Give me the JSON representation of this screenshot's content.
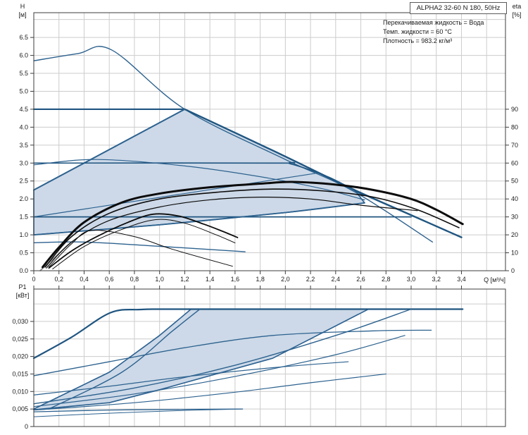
{
  "header": {
    "title_box": "ALPHA2 32-60 N 180, 50Hz",
    "conditions": [
      "Перекачиваемая жидкость = Вода",
      "Темп. жидкости = 60 °C",
      "Плотность = 983.2 кг/м³"
    ]
  },
  "colors": {
    "curve_blue": "#2d628f",
    "curve_blue_dark": "#1f5580",
    "curve_black": "#0c0c0c",
    "curve_gray": "#858585",
    "band_fill": "#cdd9e8",
    "band_stroke": "#2b6090",
    "grid": "#cccccc",
    "axis": "#3d3d3d",
    "text": "#1b1b1b"
  },
  "chart_data": [
    {
      "type": "line",
      "id": "top",
      "title": "Pump curves H/Q with efficiency",
      "x_axis": {
        "label": "Q [м³/ч]",
        "tick_step": 0.2,
        "ticks": [
          "0",
          "0,2",
          "0,4",
          "0,6",
          "0,8",
          "1,0",
          "1,2",
          "1,4",
          "1,6",
          "1,8",
          "2,0",
          "2,2",
          "2,4",
          "2,6",
          "2,8",
          "3,0",
          "3,2",
          "3,4"
        ],
        "range": [
          0,
          3.75
        ],
        "grid_max": 3.6
      },
      "y_left": {
        "label": "H",
        "unit": "[м]",
        "tick_step": 0.5,
        "ticks": [
          "0.0",
          "0.5",
          "1.0",
          "1.5",
          "2.0",
          "2.5",
          "3.0",
          "3.5",
          "4.0",
          "4.5",
          "5.0",
          "5.5",
          "6.0",
          "6.5"
        ],
        "range": [
          0,
          7.19
        ],
        "grid_max": 7.0
      },
      "y_right": {
        "label": "eta",
        "unit": "[%]",
        "tick_step": 10,
        "ticks": [
          "0",
          "10",
          "20",
          "30",
          "40",
          "50",
          "60",
          "70",
          "80",
          "90"
        ],
        "range": [
          0,
          143.8
        ]
      },
      "band": {
        "name": "autoadapt-operating-range",
        "points": [
          [
            0,
            2.25
          ],
          [
            1.2,
            4.5
          ],
          [
            1.9,
            3.35
          ],
          [
            2.55,
            2.25
          ],
          [
            2.63,
            1.89
          ],
          [
            2.0,
            1.62
          ],
          [
            1.0,
            1.28
          ],
          [
            0,
            1.0
          ]
        ]
      },
      "series": [
        {
          "name": "max-speed-curve",
          "axis": "H",
          "color": "blue",
          "w": 1.4,
          "smooth": true,
          "points": [
            [
              0,
              5.85
            ],
            [
              0.35,
              6.05
            ],
            [
              0.62,
              6.15
            ],
            [
              1.2,
              4.5
            ],
            [
              2.0,
              3.1
            ],
            [
              2.55,
              2.2
            ],
            [
              3.17,
              0.8
            ]
          ]
        },
        {
          "name": "cp3-curve",
          "axis": "H",
          "color": "blue_dark",
          "w": 2.2,
          "smooth": false,
          "points": [
            [
              0,
              4.5
            ],
            [
              1.2,
              4.5
            ]
          ]
        },
        {
          "name": "autoadapt-top-curve",
          "axis": "H",
          "color": "blue_dark",
          "w": 2.4,
          "smooth": true,
          "points": [
            [
              1.2,
              4.5
            ],
            [
              1.9,
              3.35
            ],
            [
              2.55,
              2.25
            ],
            [
              3.0,
              1.55
            ],
            [
              3.4,
              0.93
            ]
          ]
        },
        {
          "name": "pp3-curve",
          "axis": "H",
          "color": "blue",
          "w": 2.0,
          "smooth": false,
          "points": [
            [
              0,
              2.25
            ],
            [
              1.2,
              4.5
            ]
          ]
        },
        {
          "name": "cp2-curve",
          "axis": "H",
          "color": "blue_dark",
          "w": 1.6,
          "smooth": true,
          "points": [
            [
              0,
              3.0
            ],
            [
              1.9,
              3.0
            ],
            [
              2.04,
              2.98
            ],
            [
              2.35,
              2.6
            ],
            [
              2.62,
              2.1
            ]
          ]
        },
        {
          "name": "speed2-curve",
          "axis": "H",
          "color": "blue",
          "w": 1.2,
          "smooth": true,
          "points": [
            [
              0,
              2.95
            ],
            [
              0.5,
              3.1
            ],
            [
              1.2,
              2.92
            ],
            [
              1.8,
              2.62
            ],
            [
              2.3,
              2.28
            ],
            [
              2.63,
              1.97
            ]
          ]
        },
        {
          "name": "pp2-curve",
          "axis": "H",
          "color": "blue",
          "w": 1.2,
          "smooth": false,
          "points": [
            [
              0,
              1.5
            ],
            [
              2.25,
              2.72
            ]
          ]
        },
        {
          "name": "cp1-curve",
          "axis": "H",
          "color": "blue_dark",
          "w": 1.8,
          "smooth": false,
          "points": [
            [
              0,
              1.5
            ],
            [
              3.0,
              1.5
            ]
          ]
        },
        {
          "name": "pp1-curve",
          "axis": "H",
          "color": "blue",
          "w": 1.8,
          "smooth": true,
          "points": [
            [
              0,
              1.0
            ],
            [
              1.0,
              1.28
            ],
            [
              2.0,
              1.62
            ],
            [
              2.63,
              1.89
            ]
          ]
        },
        {
          "name": "min-speed-curve",
          "axis": "H",
          "color": "blue",
          "w": 1.4,
          "smooth": true,
          "points": [
            [
              0,
              0.78
            ],
            [
              0.4,
              0.8
            ],
            [
              1.0,
              0.68
            ],
            [
              1.68,
              0.53
            ]
          ]
        },
        {
          "name": "eta-start-segment",
          "axis": "eta",
          "color": "gray",
          "w": 1.6,
          "smooth": false,
          "points": [
            [
              0.05,
              0
            ],
            [
              0.3,
              16
            ]
          ]
        },
        {
          "name": "eta-max-curve",
          "axis": "eta",
          "color": "black",
          "w": 3.0,
          "smooth": true,
          "points": [
            [
              0.07,
              2
            ],
            [
              0.2,
              13
            ],
            [
              0.4,
              27
            ],
            [
              0.7,
              38
            ],
            [
              1.0,
              43
            ],
            [
              1.4,
              46.5
            ],
            [
              1.8,
              48.5
            ],
            [
              2.05,
              49.5
            ],
            [
              2.4,
              48
            ],
            [
              2.7,
              45
            ],
            [
              3.0,
              40
            ],
            [
              3.2,
              34
            ],
            [
              3.41,
              26
            ]
          ]
        },
        {
          "name": "eta-curve-2",
          "axis": "eta",
          "color": "black",
          "w": 1.6,
          "smooth": true,
          "points": [
            [
              0.09,
              2
            ],
            [
              0.3,
              19
            ],
            [
              0.6,
              32
            ],
            [
              1.0,
              40
            ],
            [
              1.5,
              44
            ],
            [
              1.9,
              45.5
            ],
            [
              2.3,
              44.5
            ],
            [
              2.7,
              41
            ],
            [
              3.05,
              34
            ],
            [
              3.38,
              24
            ]
          ]
        },
        {
          "name": "eta-curve-3",
          "axis": "eta",
          "color": "black",
          "w": 1.2,
          "smooth": true,
          "points": [
            [
              0.1,
              1.5
            ],
            [
              0.3,
              16
            ],
            [
              0.6,
              28
            ],
            [
              1.0,
              35.5
            ],
            [
              1.4,
              39.5
            ],
            [
              1.8,
              41
            ],
            [
              2.2,
              40
            ],
            [
              2.6,
              36.5
            ],
            [
              3.05,
              33.5
            ]
          ]
        },
        {
          "name": "eta-speed1-curve",
          "axis": "eta",
          "color": "black",
          "w": 1.8,
          "smooth": true,
          "points": [
            [
              0.12,
              1.5
            ],
            [
              0.3,
              11
            ],
            [
              0.5,
              19
            ],
            [
              0.75,
              27
            ],
            [
              0.95,
              31.5
            ],
            [
              1.15,
              30.5
            ],
            [
              1.35,
              26
            ],
            [
              1.5,
              22
            ],
            [
              1.62,
              18.5
            ]
          ]
        },
        {
          "name": "eta-speed1b-curve",
          "axis": "eta",
          "color": "black",
          "w": 1.0,
          "smooth": true,
          "points": [
            [
              0.15,
              1
            ],
            [
              0.4,
              13.5
            ],
            [
              0.7,
              23
            ],
            [
              0.97,
              28.5
            ],
            [
              1.2,
              26.5
            ],
            [
              1.45,
              20
            ],
            [
              1.6,
              15.5
            ]
          ]
        },
        {
          "name": "eta-min-curve",
          "axis": "eta",
          "color": "black",
          "w": 1.0,
          "smooth": true,
          "points": [
            [
              0.12,
              2
            ],
            [
              0.3,
              15
            ],
            [
              0.46,
              22.5
            ],
            [
              0.8,
              19
            ],
            [
              1.1,
              12
            ],
            [
              1.58,
              2.5
            ]
          ]
        }
      ]
    },
    {
      "type": "line",
      "id": "bottom",
      "title": "Power input P1/Q",
      "x_axis": {
        "label": "",
        "tick_step": 0.2,
        "ticks": [],
        "range": [
          0,
          3.75
        ],
        "grid_max": 3.6
      },
      "y_left": {
        "label": "P1",
        "unit": "[кВт]",
        "tick_step": 0.005,
        "ticks": [
          "0",
          "0,005",
          "0,010",
          "0,015",
          "0,020",
          "0,025",
          "0,030"
        ],
        "range": [
          0,
          0.03924
        ],
        "grid_max": 0.035
      },
      "band": {
        "name": "autoadapt-power-range",
        "points": [
          [
            0,
            0.005
          ],
          [
            0.6,
            0.0155
          ],
          [
            1.0,
            0.026
          ],
          [
            1.25,
            0.0335
          ],
          [
            2.66,
            0.0335
          ],
          [
            1.9,
            0.0195
          ],
          [
            1.0,
            0.0105
          ],
          [
            0.6,
            0.0068
          ],
          [
            0,
            0.0048
          ]
        ]
      },
      "series": [
        {
          "name": "p1-max-speed-curve",
          "axis": "P",
          "color": "blue_dark",
          "w": 2.2,
          "smooth": true,
          "points": [
            [
              0,
              0.0195
            ],
            [
              0.3,
              0.0255
            ],
            [
              0.61,
              0.0325
            ],
            [
              0.85,
              0.0334
            ],
            [
              1.1,
              0.0335
            ],
            [
              2.2,
              0.0335
            ],
            [
              3.41,
              0.0335
            ]
          ]
        },
        {
          "name": "p1-speed2-curve",
          "axis": "P",
          "color": "blue",
          "w": 1.3,
          "smooth": true,
          "points": [
            [
              0,
              0.0145
            ],
            [
              0.6,
              0.0185
            ],
            [
              1.2,
              0.0225
            ],
            [
              1.9,
              0.026
            ],
            [
              2.7,
              0.0273
            ],
            [
              3.16,
              0.0275
            ]
          ]
        },
        {
          "name": "p1-speed1-curve",
          "axis": "P",
          "color": "blue",
          "w": 1.2,
          "smooth": true,
          "points": [
            [
              0,
              0.009
            ],
            [
              0.6,
              0.0115
            ],
            [
              1.2,
              0.0142
            ],
            [
              1.9,
              0.0168
            ],
            [
              2.5,
              0.0185
            ]
          ]
        },
        {
          "name": "p1-cp3-curve",
          "axis": "P",
          "color": "blue",
          "w": 1.4,
          "smooth": true,
          "points": [
            [
              0,
              0.0065
            ],
            [
              0.8,
              0.011
            ],
            [
              1.6,
              0.0175
            ],
            [
              2.4,
              0.026
            ],
            [
              3.0,
              0.0335
            ]
          ]
        },
        {
          "name": "p1-cp2-curve",
          "axis": "P",
          "color": "blue",
          "w": 1.2,
          "smooth": true,
          "points": [
            [
              0,
              0.0057
            ],
            [
              0.8,
              0.0093
            ],
            [
              1.6,
              0.0143
            ],
            [
              2.4,
              0.0205
            ],
            [
              2.95,
              0.026
            ]
          ]
        },
        {
          "name": "p1-cp1-curve",
          "axis": "P",
          "color": "blue",
          "w": 1.2,
          "smooth": true,
          "points": [
            [
              0,
              0.0047
            ],
            [
              0.8,
              0.0068
            ],
            [
              1.6,
              0.0098
            ],
            [
              2.2,
              0.0125
            ],
            [
              2.8,
              0.015
            ]
          ]
        },
        {
          "name": "p1-pp3-rise-curve",
          "axis": "P",
          "color": "blue",
          "w": 1.4,
          "smooth": true,
          "points": [
            [
              0.12,
              0.005
            ],
            [
              0.7,
              0.0155
            ],
            [
              1.1,
              0.0272
            ],
            [
              1.32,
              0.0335
            ]
          ]
        },
        {
          "name": "p1-min-speed-curve",
          "axis": "P",
          "color": "blue",
          "w": 1.3,
          "smooth": true,
          "points": [
            [
              0,
              0.0042
            ],
            [
              0.6,
              0.0047
            ],
            [
              1.2,
              0.0049
            ],
            [
              1.66,
              0.005
            ]
          ]
        },
        {
          "name": "p1-low-curve",
          "axis": "P",
          "color": "blue",
          "w": 1.0,
          "smooth": true,
          "points": [
            [
              0,
              0.0028
            ],
            [
              0.6,
              0.0038
            ],
            [
              1.2,
              0.0046
            ],
            [
              1.66,
              0.005
            ]
          ]
        }
      ]
    }
  ]
}
